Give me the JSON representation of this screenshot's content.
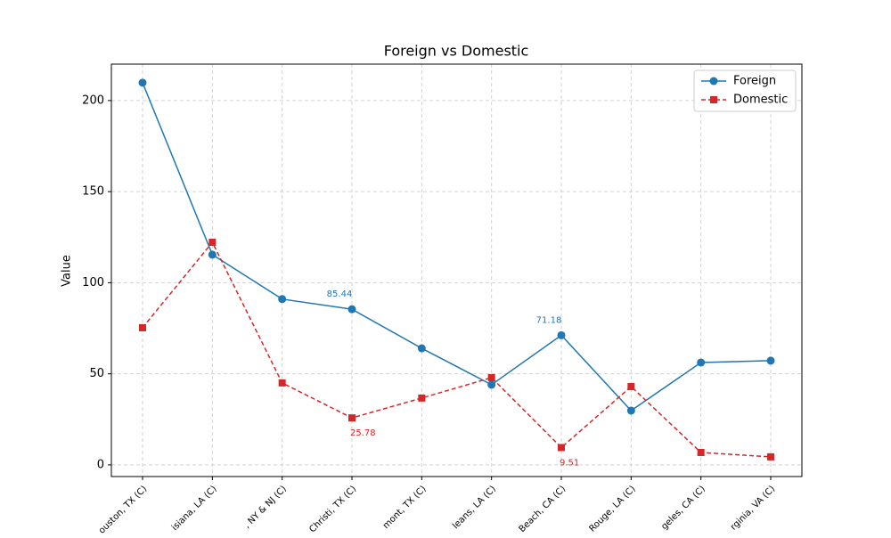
{
  "chart_data": {
    "type": "line",
    "title": "Foreign vs Domestic",
    "y_label": "Value",
    "categories": [
      "ouston, TX (C)",
      "isiana, LA (C)",
      ", NY & NJ  (C)",
      "Christi, TX  (C)",
      "mont, TX  (C)",
      "leans, LA  (C)",
      "Beach, CA  (C)",
      "Rouge, LA  (C)",
      "geles, CA  (C)",
      "rginia, VA  (C)"
    ],
    "series": [
      {
        "name": "Foreign",
        "color": "#1f77b4",
        "marker": "circle",
        "dash": false,
        "labeled": [
          3,
          6
        ],
        "values": [
          209.8,
          115.4,
          91,
          85.44,
          64,
          44,
          71.18,
          29.8,
          56.2,
          57.2
        ]
      },
      {
        "name": "Domestic",
        "color": "#d62728",
        "marker": "square",
        "dash": true,
        "labeled": [
          3,
          6
        ],
        "values": [
          75.3,
          122.2,
          45,
          25.78,
          36.7,
          47.9,
          9.51,
          43,
          6.8,
          4.4
        ]
      }
    ],
    "ylim": [
      -6.4,
      220
    ],
    "yticks": [
      0,
      50,
      100,
      150,
      200
    ],
    "grid": true,
    "legend": "upper right"
  }
}
